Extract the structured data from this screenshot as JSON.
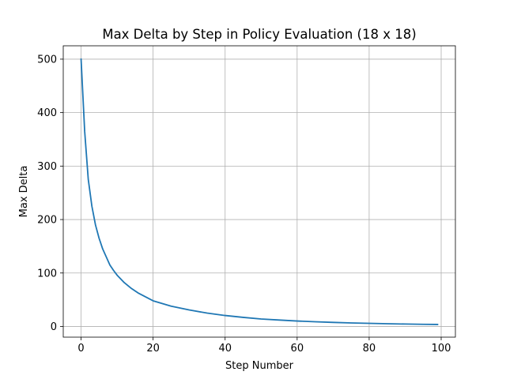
{
  "chart_data": {
    "type": "line",
    "title": "Max Delta by Step in Policy Evaluation (18 x 18)",
    "xlabel": "Step Number",
    "ylabel": "Max Delta",
    "xlim": [
      -4.95,
      103.95
    ],
    "ylim": [
      -20,
      525
    ],
    "xticks": [
      0,
      20,
      40,
      60,
      80,
      100
    ],
    "yticks": [
      0,
      100,
      200,
      300,
      400,
      500
    ],
    "grid": true,
    "series": [
      {
        "name": "Max Delta",
        "color": "#1f77b4",
        "x": [
          0,
          1,
          2,
          3,
          4,
          5,
          6,
          7,
          8,
          9,
          10,
          12,
          14,
          16,
          18,
          20,
          25,
          30,
          35,
          40,
          45,
          50,
          55,
          60,
          65,
          70,
          75,
          80,
          85,
          90,
          95,
          99
        ],
        "y": [
          500,
          365,
          275,
          225,
          190,
          165,
          145,
          130,
          115,
          105,
          96,
          82,
          71,
          62,
          55,
          48,
          38,
          31,
          25,
          20.5,
          17,
          14,
          12,
          10.2,
          8.8,
          7.6,
          6.6,
          5.8,
          5.1,
          4.5,
          4.0,
          3.7
        ]
      }
    ]
  }
}
